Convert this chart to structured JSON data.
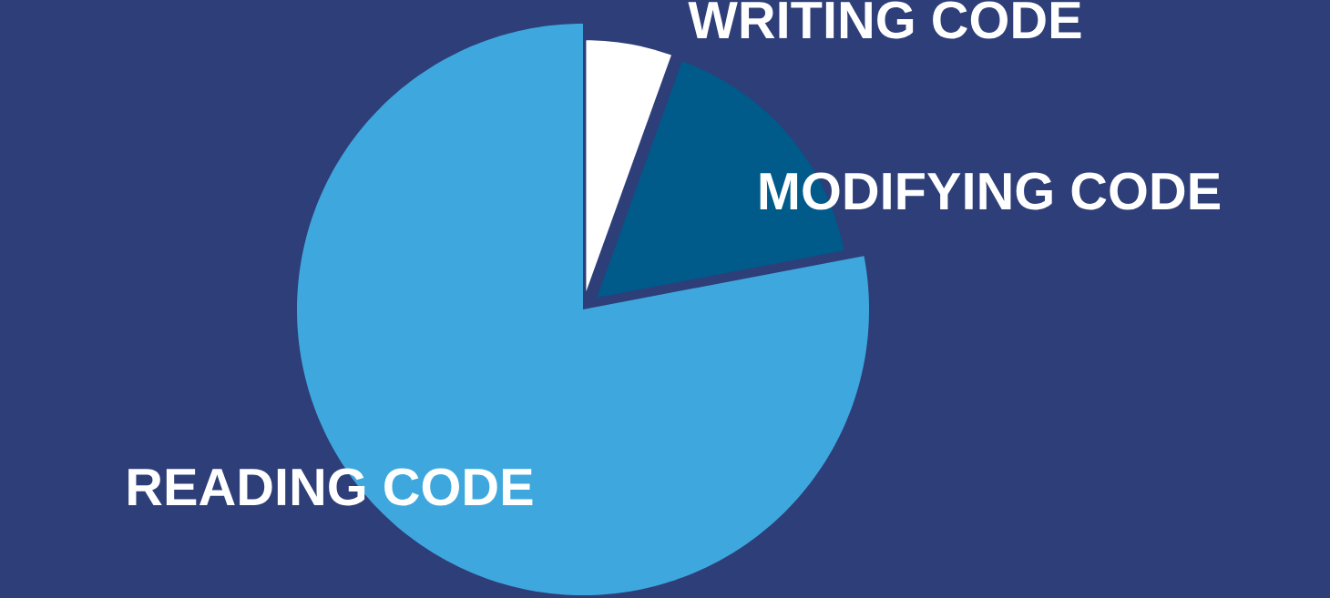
{
  "chart_data": {
    "type": "pie",
    "categories": [
      "WRITING CODE",
      "MODIFYING CODE",
      "READING CODE"
    ],
    "values": [
      5.5,
      16.5,
      78
    ],
    "colors": [
      "#ffffff",
      "#005a8a",
      "#3ea8de"
    ]
  }
}
